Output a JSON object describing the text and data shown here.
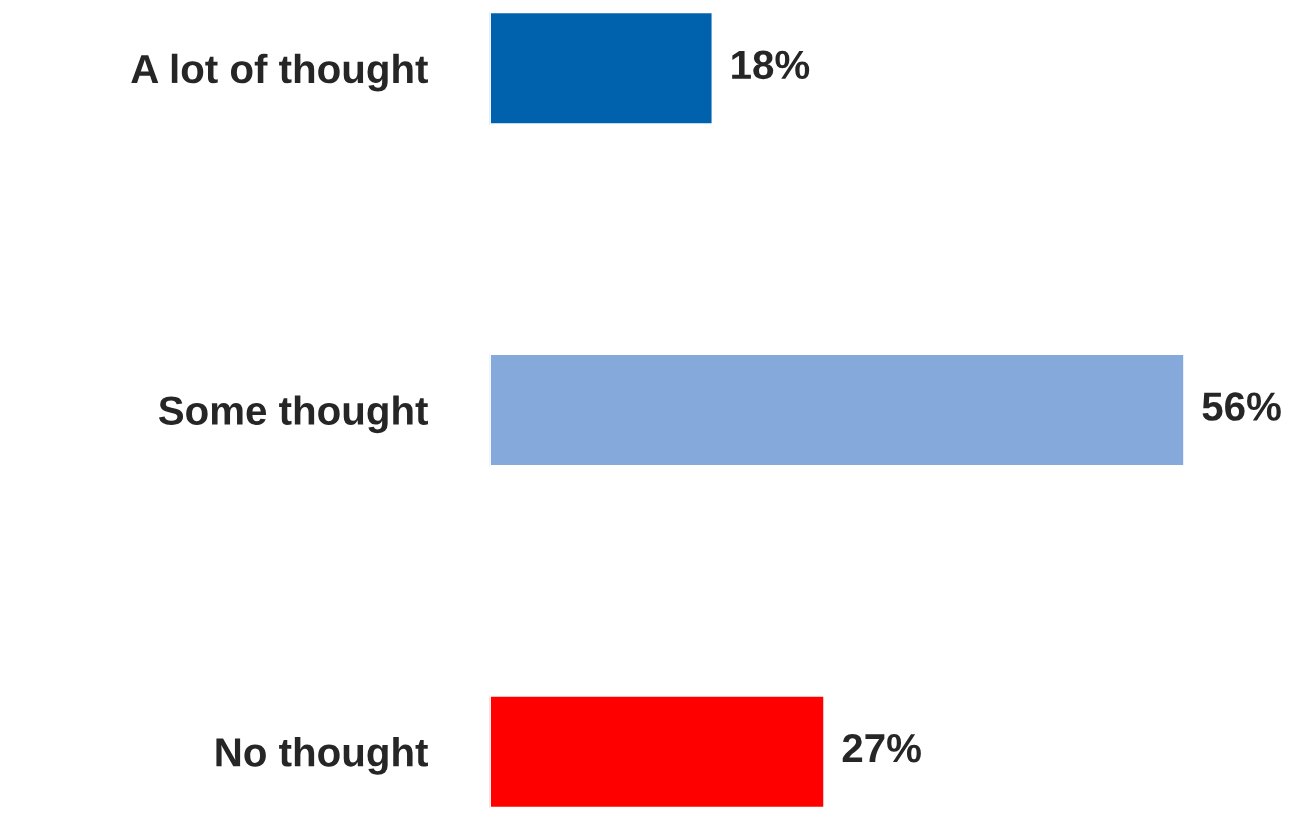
{
  "chart_data": {
    "type": "bar",
    "orientation": "horizontal",
    "categories": [
      "A lot of thought",
      "Some thought",
      "No thought"
    ],
    "values": [
      18,
      56,
      27
    ],
    "colors": [
      "#0061ad",
      "#86a9dc",
      "#ff0000"
    ],
    "value_labels": [
      "18%",
      "56%",
      "27%"
    ],
    "grid": false,
    "legend": false
  }
}
